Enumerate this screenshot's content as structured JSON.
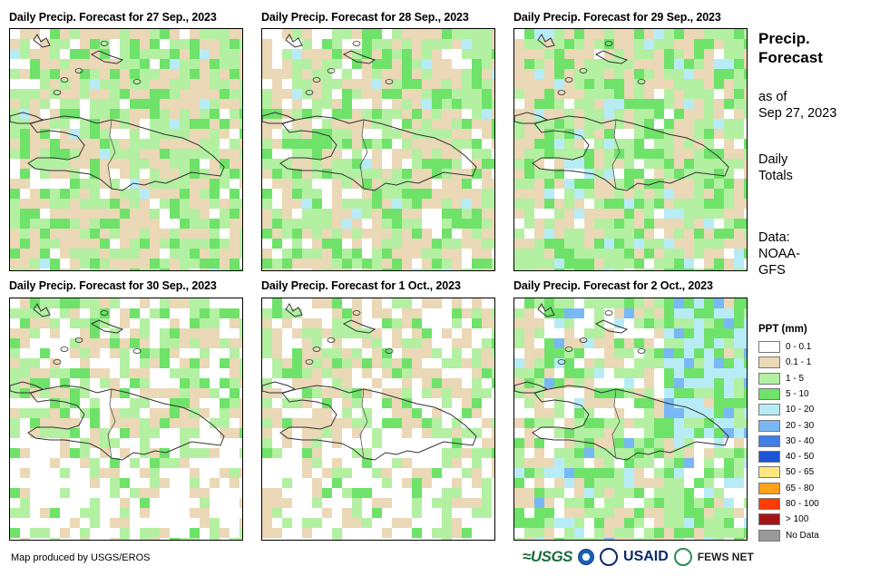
{
  "panels": [
    {
      "title": "Daily Precip. Forecast for 27 Sep., 2023",
      "seed": 11,
      "weights": [
        0.1,
        0.38,
        0.34,
        0.16,
        0.02,
        0.0
      ]
    },
    {
      "title": "Daily Precip. Forecast for 28 Sep., 2023",
      "seed": 23,
      "weights": [
        0.15,
        0.35,
        0.3,
        0.18,
        0.02,
        0.0
      ]
    },
    {
      "title": "Daily Precip. Forecast for 29 Sep., 2023",
      "seed": 37,
      "weights": [
        0.07,
        0.3,
        0.36,
        0.22,
        0.05,
        0.0
      ]
    },
    {
      "title": "Daily Precip. Forecast for 30 Sep., 2023",
      "seed": 41,
      "weights": [
        0.3,
        0.3,
        0.28,
        0.12,
        0.0,
        0.0
      ]
    },
    {
      "title": "Daily Precip. Forecast for 1 Oct., 2023",
      "seed": 53,
      "weights": [
        0.35,
        0.28,
        0.27,
        0.1,
        0.0,
        0.0
      ]
    },
    {
      "title": "Daily Precip. Forecast for 2 Oct., 2023",
      "seed": 67,
      "weights": [
        0.2,
        0.2,
        0.3,
        0.18,
        0.09,
        0.03
      ]
    }
  ],
  "side": {
    "title_line1": "Precip.",
    "title_line2": "Forecast",
    "asof_line1": "as of",
    "asof_line2": "Sep 27, 2023",
    "daily_line1": "Daily",
    "daily_line2": "Totals",
    "data_line1": "Data:",
    "data_line2": "NOAA-",
    "data_line3": "GFS"
  },
  "legend": {
    "title": "PPT (mm)",
    "items": [
      {
        "label": "0 - 0.1",
        "color": "#ffffff"
      },
      {
        "label": "0.1 - 1",
        "color": "#ead8b6"
      },
      {
        "label": "1 - 5",
        "color": "#b3f0a2"
      },
      {
        "label": "5 - 10",
        "color": "#6fe26a"
      },
      {
        "label": "10 - 20",
        "color": "#b7ecf6"
      },
      {
        "label": "20 - 30",
        "color": "#78b8f4"
      },
      {
        "label": "30 - 40",
        "color": "#3f7fe8"
      },
      {
        "label": "40 - 50",
        "color": "#1a55d6"
      },
      {
        "label": "50 - 65",
        "color": "#ffe680"
      },
      {
        "label": "65 - 80",
        "color": "#ff9f1a"
      },
      {
        "label": "80 - 100",
        "color": "#ff3b00"
      },
      {
        "label": "> 100",
        "color": "#a31515"
      },
      {
        "label": "No Data",
        "color": "#999999"
      }
    ]
  },
  "footer": {
    "credit": "Map produced by USGS/EROS",
    "logo_usgs": "≈USGS",
    "logo_usaid": "USAID",
    "logo_fews": "FEWS NET"
  }
}
